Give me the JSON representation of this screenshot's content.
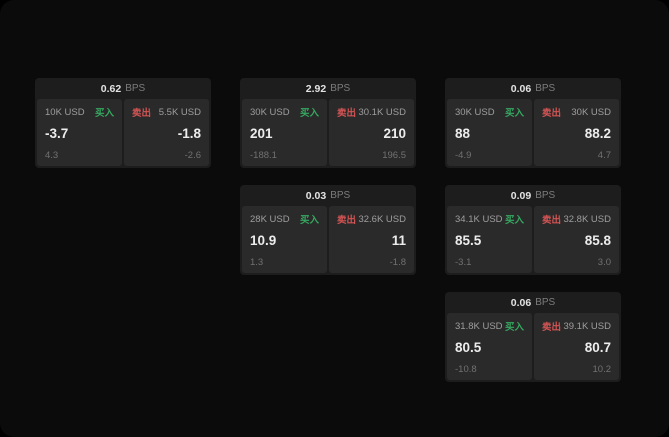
{
  "labels": {
    "bps_unit": "BPS",
    "buy": "买入",
    "sell": "卖出"
  },
  "colors": {
    "buy": "#36a860",
    "sell": "#d35454"
  },
  "cards": [
    {
      "col": 1,
      "row": 1,
      "bps": "0.62",
      "buy": {
        "amount": "10K USD",
        "price": "-3.7",
        "delta": "4.3"
      },
      "sell": {
        "amount": "5.5K USD",
        "price": "-1.8",
        "delta": "-2.6"
      }
    },
    {
      "col": 2,
      "row": 1,
      "bps": "2.92",
      "buy": {
        "amount": "30K USD",
        "price": "201",
        "delta": "-188.1"
      },
      "sell": {
        "amount": "30.1K USD",
        "price": "210",
        "delta": "196.5"
      }
    },
    {
      "col": 3,
      "row": 1,
      "bps": "0.06",
      "buy": {
        "amount": "30K USD",
        "price": "88",
        "delta": "-4.9"
      },
      "sell": {
        "amount": "30K USD",
        "price": "88.2",
        "delta": "4.7"
      }
    },
    {
      "col": 2,
      "row": 2,
      "bps": "0.03",
      "buy": {
        "amount": "28K USD",
        "price": "10.9",
        "delta": "1.3"
      },
      "sell": {
        "amount": "32.6K USD",
        "price": "11",
        "delta": "-1.8"
      }
    },
    {
      "col": 3,
      "row": 2,
      "bps": "0.09",
      "buy": {
        "amount": "34.1K USD",
        "price": "85.5",
        "delta": "-3.1"
      },
      "sell": {
        "amount": "32.8K USD",
        "price": "85.8",
        "delta": "3.0"
      }
    },
    {
      "col": 3,
      "row": 3,
      "bps": "0.06",
      "buy": {
        "amount": "31.8K USD",
        "price": "80.5",
        "delta": "-10.8"
      },
      "sell": {
        "amount": "39.1K USD",
        "price": "80.7",
        "delta": "10.2"
      }
    }
  ]
}
